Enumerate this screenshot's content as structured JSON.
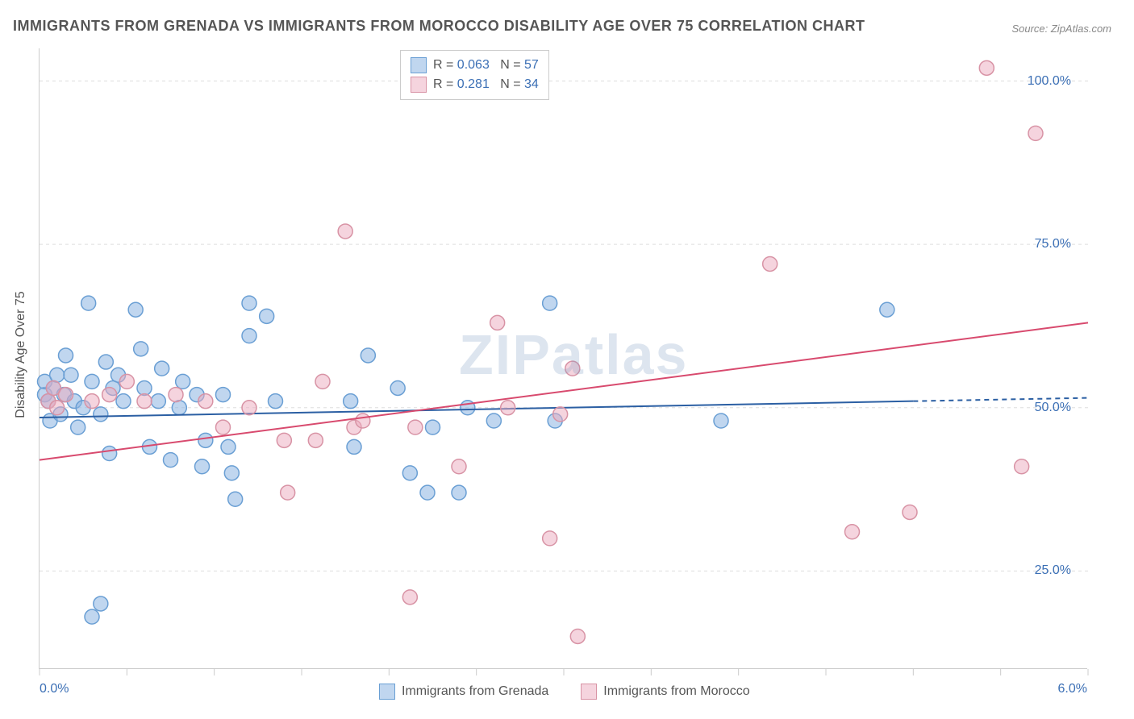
{
  "title": "IMMIGRANTS FROM GRENADA VS IMMIGRANTS FROM MOROCCO DISABILITY AGE OVER 75 CORRELATION CHART",
  "source": "Source: ZipAtlas.com",
  "ylabel": "Disability Age Over 75",
  "watermark": "ZIPatlas",
  "chart": {
    "type": "scatter-with-regression",
    "background_color": "#ffffff",
    "grid_color": "#dddddd",
    "axis_color": "#cccccc",
    "tick_label_color": "#3b6fb5",
    "label_color": "#555555",
    "title_fontsize": 18,
    "label_fontsize": 16,
    "tick_fontsize": 16,
    "xlim": [
      0.0,
      6.0
    ],
    "ylim": [
      10.0,
      105.0
    ],
    "xticks": [
      0.0,
      0.5,
      1.0,
      1.5,
      2.0,
      2.5,
      3.0,
      3.5,
      4.0,
      4.5,
      5.0,
      5.5,
      6.0
    ],
    "xtick_labels": {
      "0.0": "0.0%",
      "6.0": "6.0%"
    },
    "yticks": [
      25.0,
      50.0,
      75.0,
      100.0
    ],
    "ytick_labels": [
      "25.0%",
      "50.0%",
      "75.0%",
      "100.0%"
    ],
    "marker_radius": 9,
    "marker_stroke_width": 1.5,
    "line_width": 2,
    "series": [
      {
        "name": "Immigrants from Grenada",
        "fill": "rgba(140,180,225,0.55)",
        "stroke": "#6a9fd4",
        "line_color": "#2b5fa3",
        "line_dash_extension": true,
        "R": "0.063",
        "N": "57",
        "reg_start": {
          "x": 0.0,
          "y": 48.5
        },
        "reg_end_solid": {
          "x": 5.0,
          "y": 51.0
        },
        "reg_end_dash": {
          "x": 6.0,
          "y": 51.5
        },
        "points": [
          {
            "x": 0.03,
            "y": 52
          },
          {
            "x": 0.03,
            "y": 54
          },
          {
            "x": 0.05,
            "y": 51
          },
          {
            "x": 0.06,
            "y": 48
          },
          {
            "x": 0.08,
            "y": 53
          },
          {
            "x": 0.1,
            "y": 55
          },
          {
            "x": 0.12,
            "y": 49
          },
          {
            "x": 0.14,
            "y": 52
          },
          {
            "x": 0.18,
            "y": 55
          },
          {
            "x": 0.2,
            "y": 51
          },
          {
            "x": 0.22,
            "y": 47
          },
          {
            "x": 0.25,
            "y": 50
          },
          {
            "x": 0.28,
            "y": 66
          },
          {
            "x": 0.3,
            "y": 54
          },
          {
            "x": 0.3,
            "y": 18
          },
          {
            "x": 0.35,
            "y": 49
          },
          {
            "x": 0.38,
            "y": 57
          },
          {
            "x": 0.4,
            "y": 43
          },
          {
            "x": 0.42,
            "y": 53
          },
          {
            "x": 0.45,
            "y": 55
          },
          {
            "x": 0.48,
            "y": 51
          },
          {
            "x": 0.55,
            "y": 65
          },
          {
            "x": 0.58,
            "y": 59
          },
          {
            "x": 0.6,
            "y": 53
          },
          {
            "x": 0.63,
            "y": 44
          },
          {
            "x": 0.68,
            "y": 51
          },
          {
            "x": 0.7,
            "y": 56
          },
          {
            "x": 0.75,
            "y": 42
          },
          {
            "x": 0.8,
            "y": 50
          },
          {
            "x": 0.82,
            "y": 54
          },
          {
            "x": 0.9,
            "y": 52
          },
          {
            "x": 0.93,
            "y": 41
          },
          {
            "x": 0.95,
            "y": 45
          },
          {
            "x": 1.05,
            "y": 52
          },
          {
            "x": 1.08,
            "y": 44
          },
          {
            "x": 1.1,
            "y": 40
          },
          {
            "x": 1.12,
            "y": 36
          },
          {
            "x": 1.2,
            "y": 66
          },
          {
            "x": 1.2,
            "y": 61
          },
          {
            "x": 1.3,
            "y": 64
          },
          {
            "x": 1.35,
            "y": 51
          },
          {
            "x": 1.78,
            "y": 51
          },
          {
            "x": 1.8,
            "y": 44
          },
          {
            "x": 1.88,
            "y": 58
          },
          {
            "x": 2.05,
            "y": 53
          },
          {
            "x": 2.12,
            "y": 40
          },
          {
            "x": 2.22,
            "y": 37
          },
          {
            "x": 2.25,
            "y": 47
          },
          {
            "x": 2.4,
            "y": 37
          },
          {
            "x": 2.45,
            "y": 50
          },
          {
            "x": 2.6,
            "y": 48
          },
          {
            "x": 2.92,
            "y": 66
          },
          {
            "x": 2.95,
            "y": 48
          },
          {
            "x": 3.9,
            "y": 48
          },
          {
            "x": 4.85,
            "y": 65
          },
          {
            "x": 0.15,
            "y": 58
          },
          {
            "x": 0.35,
            "y": 20
          }
        ]
      },
      {
        "name": "Immigrants from Morocco",
        "fill": "rgba(235,170,190,0.5)",
        "stroke": "#d893a5",
        "line_color": "#d84a6e",
        "line_dash_extension": false,
        "R": "0.281",
        "N": "34",
        "reg_start": {
          "x": 0.0,
          "y": 42.0
        },
        "reg_end_solid": {
          "x": 6.0,
          "y": 63.0
        },
        "reg_end_dash": {
          "x": 6.0,
          "y": 63.0
        },
        "points": [
          {
            "x": 0.05,
            "y": 51
          },
          {
            "x": 0.08,
            "y": 53
          },
          {
            "x": 0.1,
            "y": 50
          },
          {
            "x": 0.15,
            "y": 52
          },
          {
            "x": 0.3,
            "y": 51
          },
          {
            "x": 0.4,
            "y": 52
          },
          {
            "x": 0.5,
            "y": 54
          },
          {
            "x": 0.6,
            "y": 51
          },
          {
            "x": 0.78,
            "y": 52
          },
          {
            "x": 0.95,
            "y": 51
          },
          {
            "x": 1.05,
            "y": 47
          },
          {
            "x": 1.2,
            "y": 50
          },
          {
            "x": 1.4,
            "y": 45
          },
          {
            "x": 1.42,
            "y": 37
          },
          {
            "x": 1.58,
            "y": 45
          },
          {
            "x": 1.62,
            "y": 54
          },
          {
            "x": 1.75,
            "y": 77
          },
          {
            "x": 1.8,
            "y": 47
          },
          {
            "x": 1.85,
            "y": 48
          },
          {
            "x": 2.12,
            "y": 21
          },
          {
            "x": 2.15,
            "y": 47
          },
          {
            "x": 2.4,
            "y": 41
          },
          {
            "x": 2.62,
            "y": 63
          },
          {
            "x": 2.68,
            "y": 50
          },
          {
            "x": 2.92,
            "y": 30
          },
          {
            "x": 2.98,
            "y": 49
          },
          {
            "x": 3.05,
            "y": 56
          },
          {
            "x": 3.08,
            "y": 15
          },
          {
            "x": 4.18,
            "y": 72
          },
          {
            "x": 4.65,
            "y": 31
          },
          {
            "x": 4.98,
            "y": 34
          },
          {
            "x": 5.42,
            "y": 102
          },
          {
            "x": 5.62,
            "y": 41
          },
          {
            "x": 5.7,
            "y": 92
          }
        ]
      }
    ]
  },
  "legend_top": {
    "rows": [
      {
        "swatch_fill": "rgba(140,180,225,0.55)",
        "swatch_stroke": "#6a9fd4",
        "R": "0.063",
        "N": "57"
      },
      {
        "swatch_fill": "rgba(235,170,190,0.5)",
        "swatch_stroke": "#d893a5",
        "R": "0.281",
        "N": "34"
      }
    ]
  },
  "legend_bottom": [
    {
      "swatch_fill": "rgba(140,180,225,0.55)",
      "swatch_stroke": "#6a9fd4",
      "label": "Immigrants from Grenada"
    },
    {
      "swatch_fill": "rgba(235,170,190,0.5)",
      "swatch_stroke": "#d893a5",
      "label": "Immigrants from Morocco"
    }
  ]
}
